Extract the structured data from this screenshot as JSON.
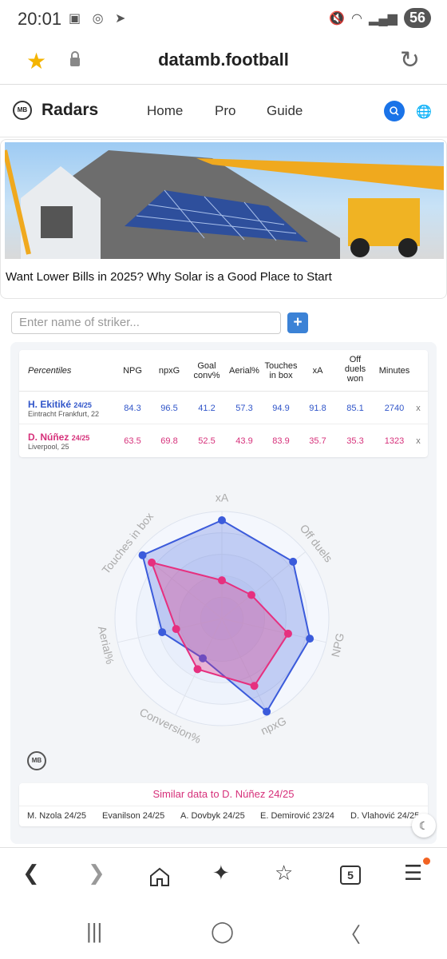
{
  "status": {
    "time": "20:01",
    "battery": "56"
  },
  "browser": {
    "url": "datamb.football",
    "tab_count": "5"
  },
  "site": {
    "logo": "MB",
    "brand": "Radars",
    "nav": [
      "Home",
      "Pro",
      "Guide"
    ]
  },
  "ad": {
    "headline": "Want Lower Bills in 2025? Why Solar is a Good Place to Start"
  },
  "search": {
    "placeholder": "Enter name of striker...",
    "add_label": "+"
  },
  "table": {
    "headers": {
      "percentiles": "Percentiles",
      "npg": "NPG",
      "npxg": "npxG",
      "goal_conv_1": "Goal",
      "goal_conv_2": "conv%",
      "aerial": "Aerial%",
      "touches_1": "Touches",
      "touches_2": "in box",
      "xa": "xA",
      "off_1": "Off",
      "off_2": "duels",
      "off_3": "won",
      "minutes": "Minutes"
    },
    "players": [
      {
        "name": "H. Ekitiké",
        "season": "24/25",
        "club": "Eintracht Frankfurt, 22",
        "npg": "84.3",
        "npxg": "96.5",
        "conv": "41.2",
        "aerial": "57.3",
        "touches": "94.9",
        "xa": "91.8",
        "off": "85.1",
        "minutes": "2740",
        "remove": "x",
        "color": "#3b5bdb"
      },
      {
        "name": "D. Núñez",
        "season": "24/25",
        "club": "Liverpool, 25",
        "npg": "63.5",
        "npxg": "69.8",
        "conv": "52.5",
        "aerial": "43.9",
        "touches": "83.9",
        "xa": "35.7",
        "off": "35.3",
        "minutes": "1323",
        "remove": "x",
        "color": "#e6307f"
      }
    ]
  },
  "chart_data": {
    "type": "radar",
    "axes": [
      "xA",
      "Off duels",
      "NPG",
      "npxG",
      "Conversion%",
      "Aerial%",
      "Touches in box"
    ],
    "rmax": 100,
    "series": [
      {
        "name": "H. Ekitiké 24/25",
        "values": [
          91.8,
          85.1,
          84.3,
          96.5,
          41.2,
          57.3,
          94.9
        ],
        "color": "#3b5bdb"
      },
      {
        "name": "D. Núñez 24/25",
        "values": [
          35.7,
          35.3,
          63.5,
          69.8,
          52.5,
          43.9,
          83.9
        ],
        "color": "#e6307f"
      }
    ]
  },
  "similar": {
    "title": "Similar data to D. Núñez 24/25",
    "players": [
      "M. Nzola 24/25",
      "Evanilson 24/25",
      "A. Dovbyk 24/25",
      "E. Demirović 23/24",
      "D. Vlahović 24/25"
    ]
  }
}
